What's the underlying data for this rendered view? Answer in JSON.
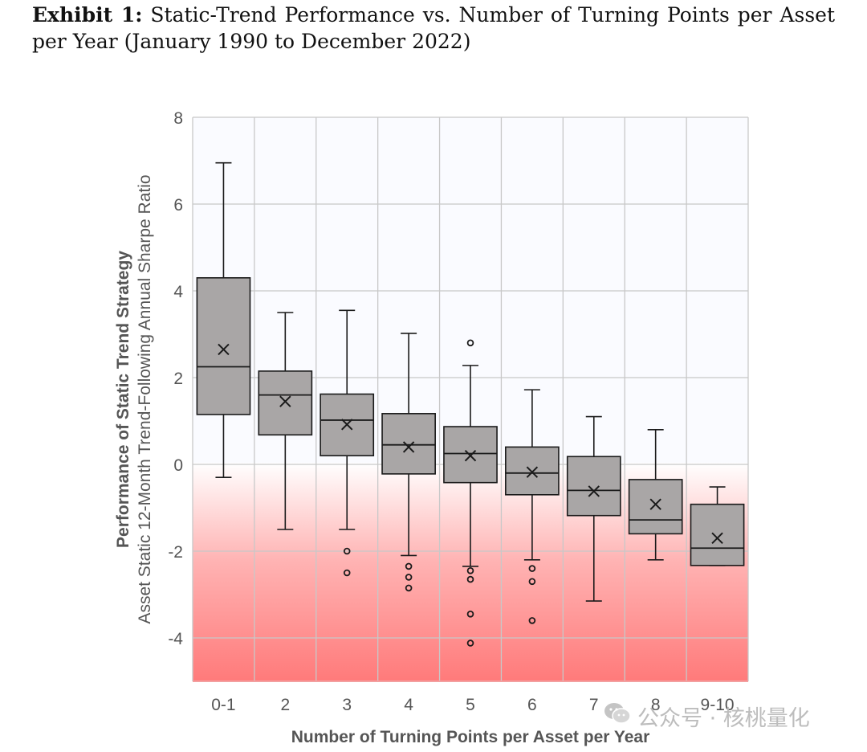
{
  "heading": {
    "label": "Exhibit 1:",
    "title": "Static-Trend Performance vs. Number of Turning Points per Asset per Year (January 1990 to December 2022)"
  },
  "chart_data": {
    "type": "box",
    "xlabel": "Number of Turning Points per Asset per Year",
    "ylabel": "Performance of Static Trend Strategy",
    "ylabel_sub": "Asset Static 12-Month Trend-Following Annual Sharpe Ratio",
    "ylim": [
      -5,
      8
    ],
    "yticks": [
      8,
      6,
      4,
      2,
      0,
      -2,
      -4
    ],
    "grid": true,
    "negative_region_color": "#ff7a7a",
    "box_color": "#a9a6a6",
    "categories": [
      "0-1",
      "2",
      "3",
      "4",
      "5",
      "6",
      "7",
      "8",
      "9-10"
    ],
    "boxes": [
      {
        "category": "0-1",
        "whisker_low": -0.3,
        "q1": 1.15,
        "median": 2.25,
        "q3": 4.3,
        "whisker_high": 6.95,
        "mean": 2.65,
        "outliers": []
      },
      {
        "category": "2",
        "whisker_low": -1.5,
        "q1": 0.68,
        "median": 1.6,
        "q3": 2.15,
        "whisker_high": 3.5,
        "mean": 1.45,
        "outliers": []
      },
      {
        "category": "3",
        "whisker_low": -1.5,
        "q1": 0.2,
        "median": 1.02,
        "q3": 1.62,
        "whisker_high": 3.55,
        "mean": 0.92,
        "outliers": [
          -2.0,
          -2.5
        ]
      },
      {
        "category": "4",
        "whisker_low": -2.1,
        "q1": -0.22,
        "median": 0.45,
        "q3": 1.17,
        "whisker_high": 3.02,
        "mean": 0.4,
        "outliers": [
          -2.35,
          -2.6,
          -2.85
        ]
      },
      {
        "category": "5",
        "whisker_low": -2.35,
        "q1": -0.42,
        "median": 0.25,
        "q3": 0.87,
        "whisker_high": 2.28,
        "mean": 0.2,
        "outliers": [
          2.8,
          -2.45,
          -2.65,
          -3.45,
          -4.12
        ]
      },
      {
        "category": "6",
        "whisker_low": -2.2,
        "q1": -0.7,
        "median": -0.2,
        "q3": 0.4,
        "whisker_high": 1.72,
        "mean": -0.18,
        "outliers": [
          -2.4,
          -2.7,
          -3.6
        ]
      },
      {
        "category": "7",
        "whisker_low": -3.15,
        "q1": -1.18,
        "median": -0.6,
        "q3": 0.18,
        "whisker_high": 1.1,
        "mean": -0.62,
        "outliers": []
      },
      {
        "category": "8",
        "whisker_low": -2.2,
        "q1": -1.6,
        "median": -1.28,
        "q3": -0.35,
        "whisker_high": 0.8,
        "mean": -0.92,
        "outliers": []
      },
      {
        "category": "9-10",
        "whisker_low": -2.33,
        "q1": -2.33,
        "median": -1.93,
        "q3": -0.92,
        "whisker_high": -0.52,
        "mean": -1.7,
        "outliers": []
      }
    ]
  },
  "watermark": {
    "icon": "wechat-icon",
    "text": "公众号 · 核桃量化"
  }
}
